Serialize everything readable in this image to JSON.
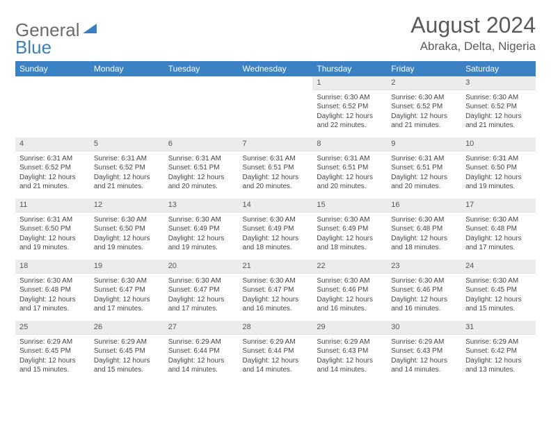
{
  "brand": {
    "part1": "General",
    "part2": "Blue"
  },
  "title": "August 2024",
  "location": "Abraka, Delta, Nigeria",
  "colors": {
    "header_bg": "#3b82c4",
    "header_text": "#ffffff",
    "daynum_bg": "#ececec",
    "brand_gray": "#6b6b6b",
    "brand_blue": "#3b7fbf",
    "text": "#444444"
  },
  "weekdays": [
    "Sunday",
    "Monday",
    "Tuesday",
    "Wednesday",
    "Thursday",
    "Friday",
    "Saturday"
  ],
  "weeks": [
    [
      {
        "blank": true
      },
      {
        "blank": true
      },
      {
        "blank": true
      },
      {
        "blank": true
      },
      {
        "d": "1",
        "sr": "6:30 AM",
        "ss": "6:52 PM",
        "dl": "12 hours and 22 minutes."
      },
      {
        "d": "2",
        "sr": "6:30 AM",
        "ss": "6:52 PM",
        "dl": "12 hours and 21 minutes."
      },
      {
        "d": "3",
        "sr": "6:30 AM",
        "ss": "6:52 PM",
        "dl": "12 hours and 21 minutes."
      }
    ],
    [
      {
        "d": "4",
        "sr": "6:31 AM",
        "ss": "6:52 PM",
        "dl": "12 hours and 21 minutes."
      },
      {
        "d": "5",
        "sr": "6:31 AM",
        "ss": "6:52 PM",
        "dl": "12 hours and 21 minutes."
      },
      {
        "d": "6",
        "sr": "6:31 AM",
        "ss": "6:51 PM",
        "dl": "12 hours and 20 minutes."
      },
      {
        "d": "7",
        "sr": "6:31 AM",
        "ss": "6:51 PM",
        "dl": "12 hours and 20 minutes."
      },
      {
        "d": "8",
        "sr": "6:31 AM",
        "ss": "6:51 PM",
        "dl": "12 hours and 20 minutes."
      },
      {
        "d": "9",
        "sr": "6:31 AM",
        "ss": "6:51 PM",
        "dl": "12 hours and 20 minutes."
      },
      {
        "d": "10",
        "sr": "6:31 AM",
        "ss": "6:50 PM",
        "dl": "12 hours and 19 minutes."
      }
    ],
    [
      {
        "d": "11",
        "sr": "6:31 AM",
        "ss": "6:50 PM",
        "dl": "12 hours and 19 minutes."
      },
      {
        "d": "12",
        "sr": "6:30 AM",
        "ss": "6:50 PM",
        "dl": "12 hours and 19 minutes."
      },
      {
        "d": "13",
        "sr": "6:30 AM",
        "ss": "6:49 PM",
        "dl": "12 hours and 19 minutes."
      },
      {
        "d": "14",
        "sr": "6:30 AM",
        "ss": "6:49 PM",
        "dl": "12 hours and 18 minutes."
      },
      {
        "d": "15",
        "sr": "6:30 AM",
        "ss": "6:49 PM",
        "dl": "12 hours and 18 minutes."
      },
      {
        "d": "16",
        "sr": "6:30 AM",
        "ss": "6:48 PM",
        "dl": "12 hours and 18 minutes."
      },
      {
        "d": "17",
        "sr": "6:30 AM",
        "ss": "6:48 PM",
        "dl": "12 hours and 17 minutes."
      }
    ],
    [
      {
        "d": "18",
        "sr": "6:30 AM",
        "ss": "6:48 PM",
        "dl": "12 hours and 17 minutes."
      },
      {
        "d": "19",
        "sr": "6:30 AM",
        "ss": "6:47 PM",
        "dl": "12 hours and 17 minutes."
      },
      {
        "d": "20",
        "sr": "6:30 AM",
        "ss": "6:47 PM",
        "dl": "12 hours and 17 minutes."
      },
      {
        "d": "21",
        "sr": "6:30 AM",
        "ss": "6:47 PM",
        "dl": "12 hours and 16 minutes."
      },
      {
        "d": "22",
        "sr": "6:30 AM",
        "ss": "6:46 PM",
        "dl": "12 hours and 16 minutes."
      },
      {
        "d": "23",
        "sr": "6:30 AM",
        "ss": "6:46 PM",
        "dl": "12 hours and 16 minutes."
      },
      {
        "d": "24",
        "sr": "6:30 AM",
        "ss": "6:45 PM",
        "dl": "12 hours and 15 minutes."
      }
    ],
    [
      {
        "d": "25",
        "sr": "6:29 AM",
        "ss": "6:45 PM",
        "dl": "12 hours and 15 minutes."
      },
      {
        "d": "26",
        "sr": "6:29 AM",
        "ss": "6:45 PM",
        "dl": "12 hours and 15 minutes."
      },
      {
        "d": "27",
        "sr": "6:29 AM",
        "ss": "6:44 PM",
        "dl": "12 hours and 14 minutes."
      },
      {
        "d": "28",
        "sr": "6:29 AM",
        "ss": "6:44 PM",
        "dl": "12 hours and 14 minutes."
      },
      {
        "d": "29",
        "sr": "6:29 AM",
        "ss": "6:43 PM",
        "dl": "12 hours and 14 minutes."
      },
      {
        "d": "30",
        "sr": "6:29 AM",
        "ss": "6:43 PM",
        "dl": "12 hours and 14 minutes."
      },
      {
        "d": "31",
        "sr": "6:29 AM",
        "ss": "6:42 PM",
        "dl": "12 hours and 13 minutes."
      }
    ]
  ],
  "labels": {
    "sunrise": "Sunrise:",
    "sunset": "Sunset:",
    "daylight": "Daylight:"
  }
}
